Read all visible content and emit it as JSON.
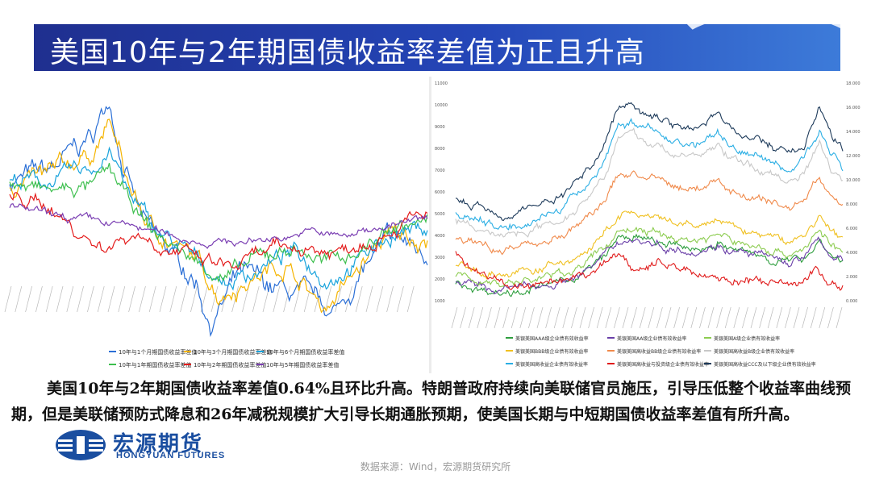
{
  "title": "美国10年与2年期国债收益率差值为正且升高",
  "body_text": "美国10年与2年期国债收益率差值0.64%且环比升高。特朗普政府持续向美联储官员施压，引导压低整个收益率曲线预期，但是美联储预防式降息和26年减税规模扩大引导长期通胀预期，使美国长期与中短期国债收益率差值有所升高。",
  "source": "数据来源：Wind，宏源期货研究所",
  "logo": {
    "cn": "宏源期货",
    "en": "HONGYUAN FUTURES"
  },
  "colors": {
    "title_bg": "#2446b8",
    "brand": "#1a4ea0"
  },
  "chart_data": [
    {
      "type": "line",
      "legend_placement": "bottom",
      "series": [
        {
          "name": "10年与1个月期国债收益率差值",
          "color": "#2b6fd6"
        },
        {
          "name": "10年与3个月期国债收益率差值",
          "color": "#f5b400"
        },
        {
          "name": "10年与6个月期国债收益率差值",
          "color": "#18a3dc"
        },
        {
          "name": "10年与1年期国债收益率差值",
          "color": "#3dbf4e"
        },
        {
          "name": "10年与2年期国债收益率差值",
          "color": "#e41c1c"
        },
        {
          "name": "10年与5年期国债收益率差值",
          "color": "#7b3fb3"
        }
      ]
    },
    {
      "type": "line",
      "legend_placement": "bottom",
      "y_ticks_left": [
        "11000",
        "10000",
        "9000",
        "8000",
        "7000",
        "6000",
        "5000",
        "4000",
        "3000",
        "2000",
        "1000"
      ],
      "y_ticks_right": [
        "18.000",
        "16.000",
        "14.000",
        "12.000",
        "10.000",
        "8.000",
        "6.000",
        "4.000",
        "2.000",
        "0.000"
      ],
      "series": [
        {
          "name": "美银美国AAA级企业债有效收益率",
          "color": "#2e9e3e"
        },
        {
          "name": "美银美国AA级企业债有效收益率",
          "color": "#6a3fa8"
        },
        {
          "name": "美银美国A级企业债有效收益率",
          "color": "#8ccc50"
        },
        {
          "name": "美银美国BBB级企业债有效收益率",
          "color": "#f0c020"
        },
        {
          "name": "美银美国高收益BB级企业债有效收益率",
          "color": "#f08a4b"
        },
        {
          "name": "美银美国高收益B级企业债有效收益率",
          "color": "#c8c8c8"
        },
        {
          "name": "美银美国高收益企业债有效收益率",
          "color": "#2aaee4"
        },
        {
          "name": "美银美国高收益与投资级企业债有效收益率",
          "color": "#e01a1a"
        },
        {
          "name": "美银美国高收益CCC及以下级企业债有效收益率",
          "color": "#1d3a5a"
        }
      ]
    }
  ]
}
